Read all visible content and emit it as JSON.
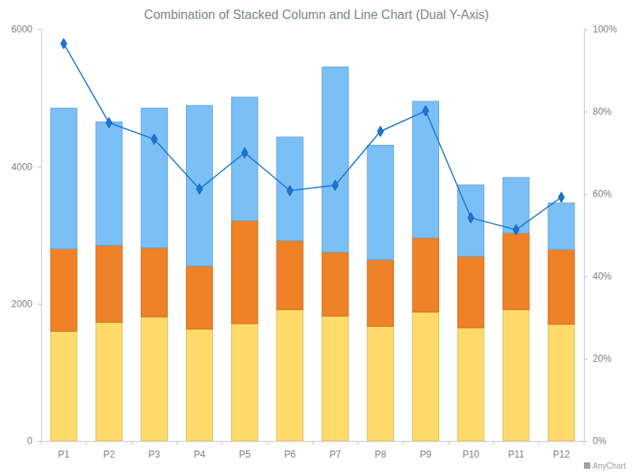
{
  "chart_data": {
    "type": "bar",
    "stacked": true,
    "title": "Combination of Stacked Column and Line Chart (Dual Y-Axis)",
    "categories": [
      "P1",
      "P2",
      "P3",
      "P4",
      "P5",
      "P6",
      "P7",
      "P8",
      "P9",
      "P10",
      "P11",
      "P12"
    ],
    "series": [
      {
        "color": "#fedb6b",
        "values": [
          1600,
          1730,
          1810,
          1630,
          1710,
          1915,
          1820,
          1670,
          1880,
          1650,
          1915,
          1700
        ]
      },
      {
        "color": "#ef8126",
        "values": [
          1200,
          1120,
          1005,
          920,
          1500,
          1005,
          930,
          970,
          1080,
          1040,
          1115,
          1090
        ]
      },
      {
        "color": "#7bbff7",
        "values": [
          2050,
          1800,
          2035,
          2340,
          1800,
          1510,
          2700,
          1670,
          1990,
          1040,
          810,
          680
        ]
      },
      {
        "type": "line",
        "axis": "y2",
        "marker": "diamond",
        "color": "#1976d2",
        "values": [
          96.5,
          77.3,
          73.3,
          61.2,
          70.0,
          60.8,
          62.1,
          75.2,
          80.2,
          54.2,
          51.3,
          59.2
        ]
      }
    ],
    "ylim": [
      0,
      6000
    ],
    "yticks": [
      0,
      2000,
      4000,
      6000
    ],
    "y2lim": [
      0,
      100
    ],
    "y2ticks": [
      {
        "value": 0,
        "label": "0%"
      },
      {
        "value": 20,
        "label": "20%"
      },
      {
        "value": 40,
        "label": "40%"
      },
      {
        "value": 60,
        "label": "60%"
      },
      {
        "value": 80,
        "label": "80%"
      },
      {
        "value": 100,
        "label": "100%"
      }
    ],
    "grid": false,
    "annotations": [
      "AnyChart"
    ]
  }
}
